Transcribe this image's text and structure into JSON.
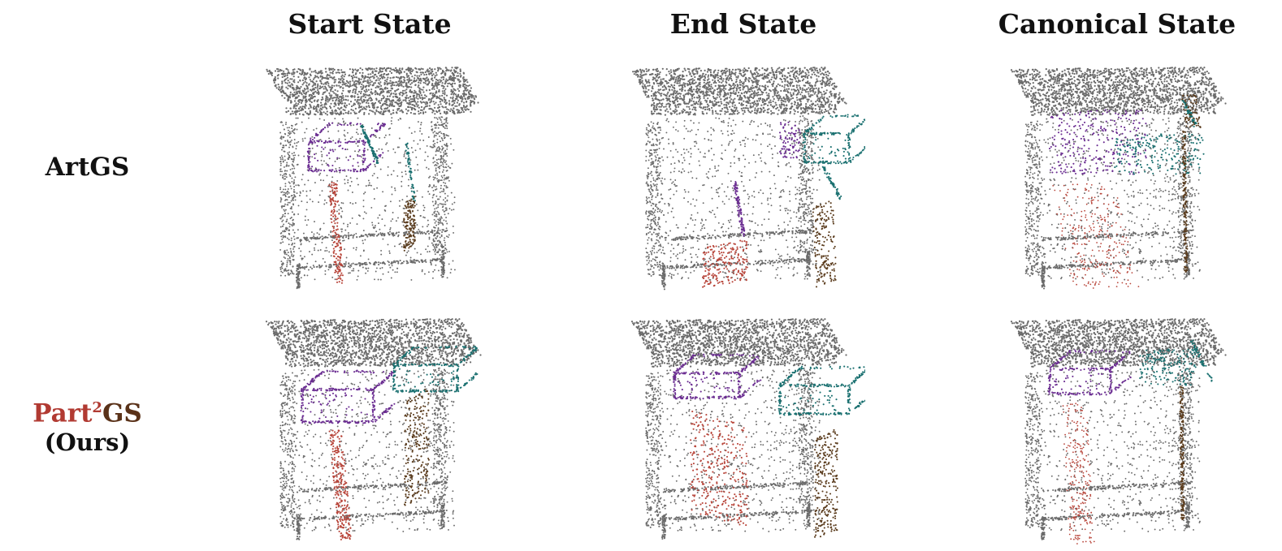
{
  "figure": {
    "columns": [
      "Start State",
      "End State",
      "Canonical State"
    ],
    "rows": [
      {
        "label": "ArtGS"
      },
      {
        "label_part1": "Part",
        "label_sup": "2",
        "label_part2": "GS",
        "label_line2": "(Ours)"
      }
    ]
  },
  "colors": {
    "body": "#6b6b6b",
    "drawer_left": "#6a2c91",
    "drawer_right": "#1a7070",
    "door_left": "#b8453a",
    "door_right": "#5a3b1c"
  },
  "parts": [
    "body",
    "drawer_left",
    "drawer_right",
    "door_left",
    "door_right"
  ]
}
